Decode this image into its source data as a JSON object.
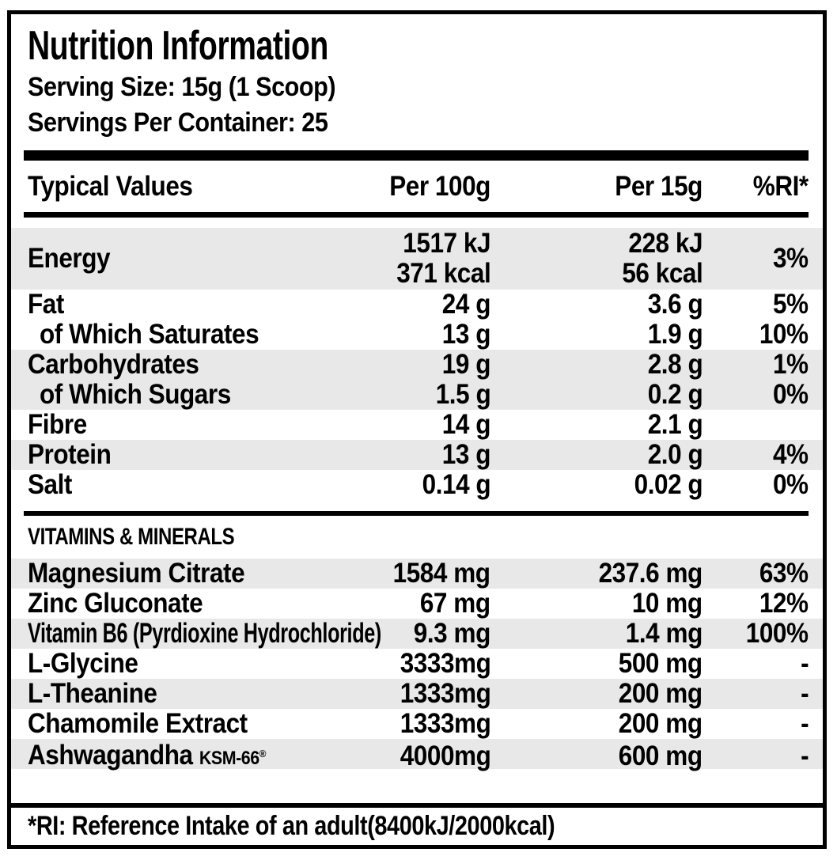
{
  "header": {
    "title": "Nutrition Information",
    "serving_size": "Serving Size: 15g (1 Scoop)",
    "servings_per_container": "Servings Per Container: 25"
  },
  "table": {
    "columns": [
      "Typical Values",
      "Per 100g",
      "Per 15g",
      "%RI*"
    ],
    "main_rows": [
      {
        "label": "Energy",
        "per100": "1517 kJ",
        "per100_line2": "371 kcal",
        "per15": "228 kJ",
        "per15_line2": "56 kcal",
        "ri": "3%",
        "shade": true,
        "indent": false
      },
      {
        "label": "Fat",
        "per100": "24 g",
        "per15": "3.6 g",
        "ri": "5%",
        "shade": false,
        "indent": false
      },
      {
        "label": "of Which Saturates",
        "per100": "13 g",
        "per15": "1.9 g",
        "ri": "10%",
        "shade": false,
        "indent": true
      },
      {
        "label": "Carbohydrates",
        "per100": "19 g",
        "per15": "2.8 g",
        "ri": "1%",
        "shade": true,
        "indent": false
      },
      {
        "label": "of Which Sugars",
        "per100": "1.5 g",
        "per15": "0.2 g",
        "ri": "0%",
        "shade": true,
        "indent": true
      },
      {
        "label": "Fibre",
        "per100": "14 g",
        "per15": "2.1 g",
        "ri": "",
        "shade": false,
        "indent": false
      },
      {
        "label": "Protein",
        "per100": "13 g",
        "per15": "2.0 g",
        "ri": "4%",
        "shade": true,
        "indent": false
      },
      {
        "label": "Salt",
        "per100": "0.14 g",
        "per15": "0.02 g",
        "ri": "0%",
        "shade": false,
        "indent": false
      }
    ],
    "section2_title": "VITAMINS & MINERALS",
    "vitamin_rows": [
      {
        "label": "Magnesium Citrate",
        "per100": "1584 mg",
        "per15": "237.6 mg",
        "ri": "63%",
        "shade": true,
        "indent": false
      },
      {
        "label": "Zinc Gluconate",
        "per100": "67 mg",
        "per15": "10 mg",
        "ri": "12%",
        "shade": false,
        "indent": false
      },
      {
        "label": "Vitamin B6 (Pyrdioxine Hydrochloride)",
        "per100": "9.3 mg",
        "per15": "1.4 mg",
        "ri": "100%",
        "shade": true,
        "indent": false,
        "tight": true
      },
      {
        "label": "L-Glycine",
        "per100": "3333mg",
        "per15": "500 mg",
        "ri": "-",
        "shade": false,
        "indent": false
      },
      {
        "label": "L-Theanine",
        "per100": "1333mg",
        "per15": "200 mg",
        "ri": "-",
        "shade": true,
        "indent": false
      },
      {
        "label": "Chamomile Extract",
        "per100": "1333mg",
        "per15": "200 mg",
        "ri": "-",
        "shade": false,
        "indent": false
      },
      {
        "label": "Ashwagandha",
        "label_suffix": "KSM-66",
        "label_suffix_mark": "®",
        "per100": "4000mg",
        "per15": "600 mg",
        "ri": "-",
        "shade": true,
        "indent": false
      }
    ]
  },
  "footer": {
    "note": "*RI: Reference Intake of an adult(8400kJ/2000kcal)"
  }
}
